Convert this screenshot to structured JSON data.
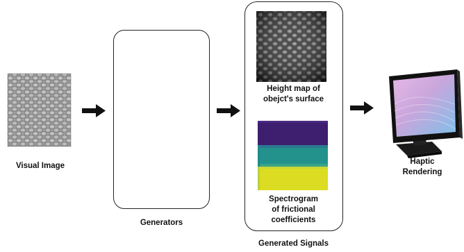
{
  "input": {
    "label": "Visual Image"
  },
  "generators": {
    "label": "Generators"
  },
  "signals": {
    "label": "Generated Signals",
    "heightmap_caption_line1": "Height map of",
    "heightmap_caption_line2": "obejct's surface",
    "spectrogram_caption_line1": "Spectrogram",
    "spectrogram_caption_line2": "of frictional",
    "spectrogram_caption_line3": "coefficients"
  },
  "output": {
    "label_line1": "Haptic",
    "label_line2": "Rendering"
  },
  "colors": {
    "generator_top": "#e6e6e6",
    "generator_bottom": "#d4ecc9",
    "spectrogram_top": "#3e1e6e",
    "spectrogram_mid": "#23928c",
    "spectrogram_bottom": "#dcdc22"
  }
}
